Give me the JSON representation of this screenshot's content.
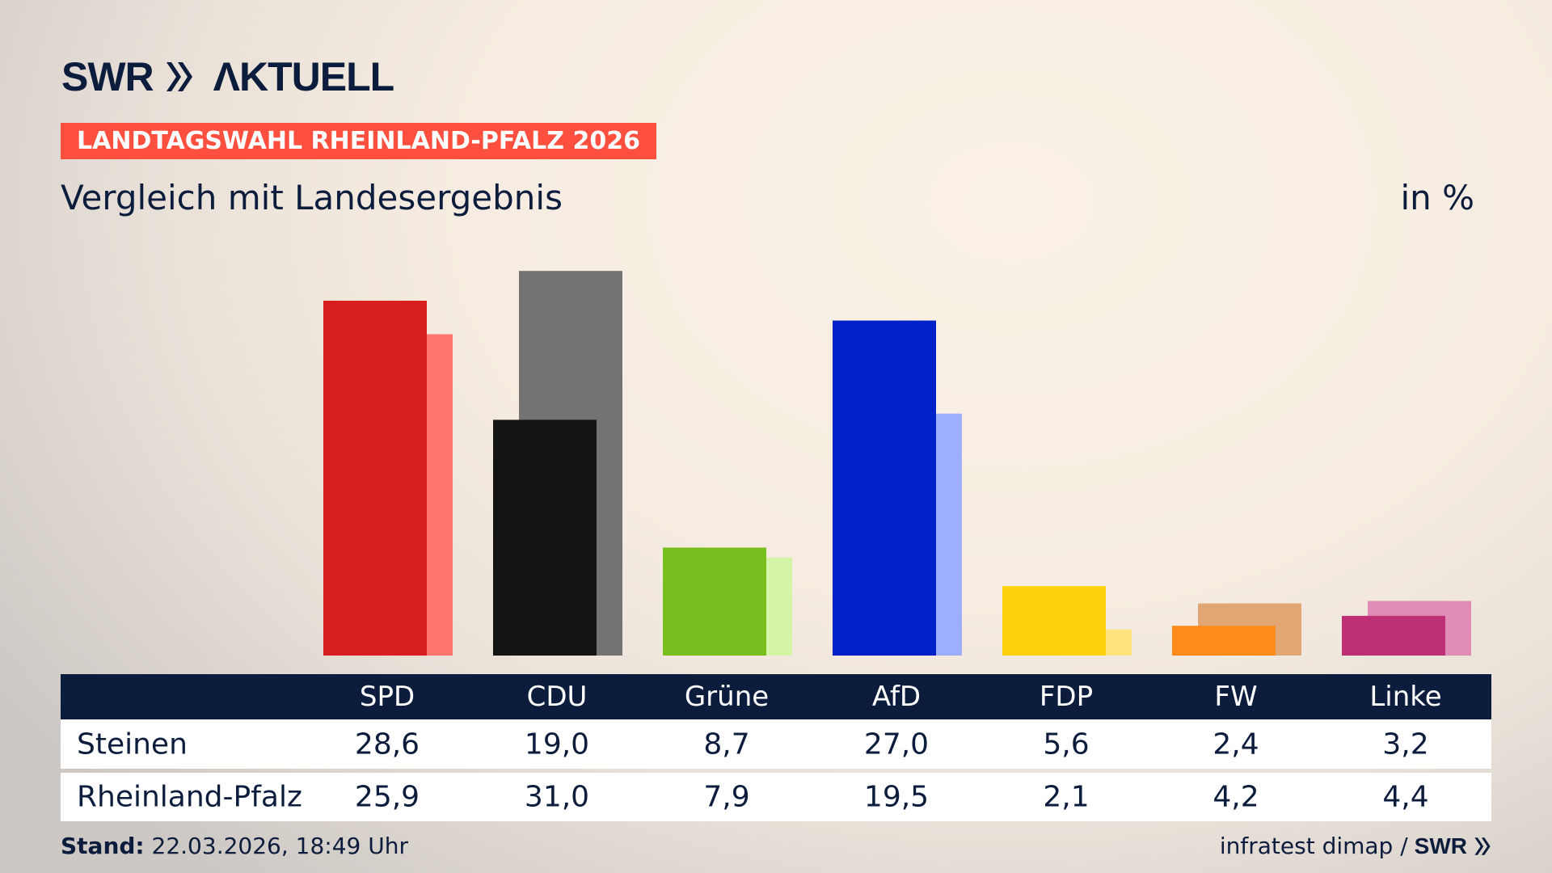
{
  "header": {
    "logo": "SWR AKTUELL",
    "tag": "LANDTAGSWAHL RHEINLAND-PFALZ 2026",
    "subtitle": "Vergleich mit Landesergebnis",
    "unit": "in %"
  },
  "chart_data": {
    "type": "bar",
    "categories": [
      "SPD",
      "CDU",
      "Grüne",
      "AfD",
      "FDP",
      "FW",
      "Linke"
    ],
    "series": [
      {
        "name": "Steinen",
        "values": [
          28.6,
          19.0,
          8.7,
          27.0,
          5.6,
          2.4,
          3.2
        ],
        "colors": [
          "#d81f1f",
          "#141414",
          "#78be1e",
          "#0020c8",
          "#ffd20f",
          "#ff8c1a",
          "#be3075"
        ]
      },
      {
        "name": "Rheinland-Pfalz",
        "values": [
          25.9,
          31.0,
          7.9,
          19.5,
          2.1,
          4.2,
          4.4
        ],
        "colors": [
          "#ff7570",
          "#737373",
          "#d5f5a6",
          "#9eaeff",
          "#ffe37a",
          "#e0a674",
          "#e08cb5"
        ]
      }
    ],
    "ylim": [
      0,
      31
    ]
  },
  "table": {
    "headers": [
      "SPD",
      "CDU",
      "Grüne",
      "AfD",
      "FDP",
      "FW",
      "Linke"
    ],
    "rows": [
      {
        "label": "Steinen",
        "values": [
          "28,6",
          "19,0",
          "8,7",
          "27,0",
          "5,6",
          "2,4",
          "3,2"
        ]
      },
      {
        "label": "Rheinland-Pfalz",
        "values": [
          "25,9",
          "31,0",
          "7,9",
          "19,5",
          "2,1",
          "4,2",
          "4,4"
        ]
      }
    ]
  },
  "footer": {
    "stand_label": "Stand:",
    "stand_value": "22.03.2026, 18:49 Uhr",
    "source": "infratest dimap /",
    "source_logo": "SWR"
  }
}
